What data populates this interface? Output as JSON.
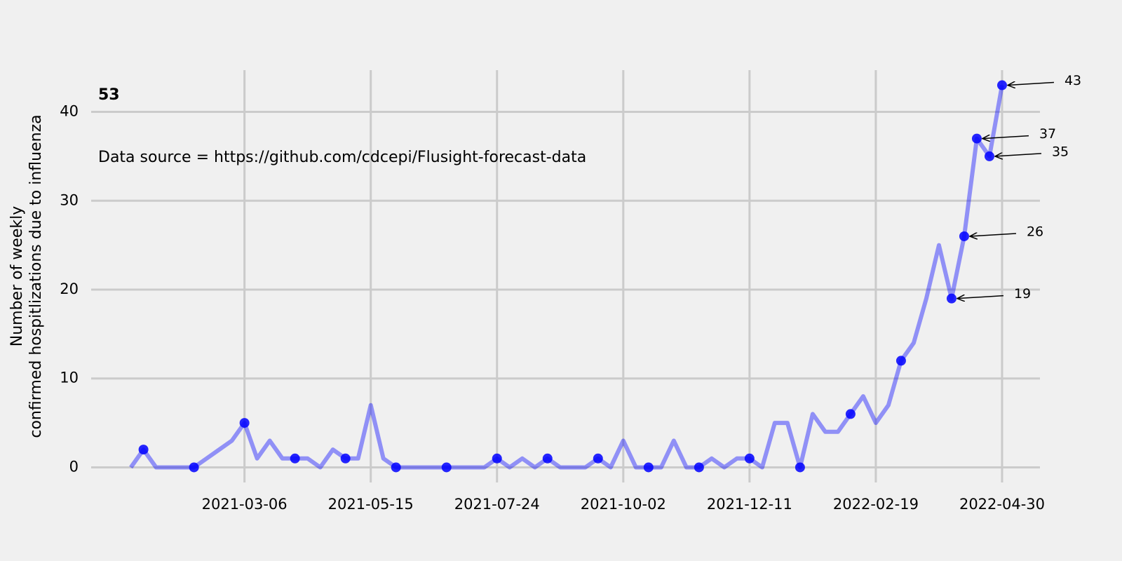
{
  "chart_data": {
    "type": "line",
    "annotations": [
      "53",
      "Data source = https://github.com/cdcepi/Flusight-forecast-data"
    ],
    "ylabel": [
      "Number of weekly",
      "confirmed hospitlizations due to influenza"
    ],
    "x": [
      "2021-01-02",
      "2021-01-09",
      "2021-01-16",
      "2021-01-23",
      "2021-01-30",
      "2021-02-06",
      "2021-02-13",
      "2021-02-20",
      "2021-02-27",
      "2021-03-06",
      "2021-03-13",
      "2021-03-20",
      "2021-03-27",
      "2021-04-03",
      "2021-04-10",
      "2021-04-17",
      "2021-04-24",
      "2021-05-01",
      "2021-05-08",
      "2021-05-15",
      "2021-05-22",
      "2021-05-29",
      "2021-06-05",
      "2021-06-12",
      "2021-06-19",
      "2021-06-26",
      "2021-07-03",
      "2021-07-10",
      "2021-07-17",
      "2021-07-24",
      "2021-07-31",
      "2021-08-07",
      "2021-08-14",
      "2021-08-21",
      "2021-08-28",
      "2021-09-04",
      "2021-09-11",
      "2021-09-18",
      "2021-09-25",
      "2021-10-02",
      "2021-10-09",
      "2021-10-16",
      "2021-10-23",
      "2021-10-30",
      "2021-11-06",
      "2021-11-13",
      "2021-11-20",
      "2021-11-27",
      "2021-12-04",
      "2021-12-11",
      "2021-12-18",
      "2021-12-25",
      "2022-01-01",
      "2022-01-08",
      "2022-01-15",
      "2022-01-22",
      "2022-01-29",
      "2022-02-05",
      "2022-02-12",
      "2022-02-19",
      "2022-02-26",
      "2022-03-05",
      "2022-03-12",
      "2022-03-19",
      "2022-03-26",
      "2022-04-02",
      "2022-04-09",
      "2022-04-16",
      "2022-04-23",
      "2022-04-30"
    ],
    "values": [
      0,
      2,
      0,
      0,
      0,
      0,
      1,
      2,
      3,
      5,
      1,
      3,
      1,
      1,
      1,
      0,
      2,
      1,
      1,
      7,
      1,
      0,
      0,
      0,
      0,
      0,
      0,
      0,
      0,
      1,
      0,
      1,
      0,
      1,
      0,
      0,
      0,
      1,
      0,
      3,
      0,
      0,
      0,
      3,
      0,
      0,
      1,
      0,
      1,
      1,
      0,
      5,
      5,
      0,
      6,
      4,
      4,
      6,
      8,
      5,
      7,
      12,
      14,
      19,
      25,
      19,
      26,
      37,
      35,
      43
    ],
    "color": "blue",
    "xlim": [
      "2020-12-11",
      "2022-05-21"
    ],
    "xticks": [
      "2021-03-06",
      "2021-05-15",
      "2021-07-24",
      "2021-10-02",
      "2021-12-11",
      "2022-02-19",
      "2022-04-30"
    ],
    "ylim": [
      -1.7,
      44.7
    ],
    "yticks": [
      0,
      10,
      20,
      30,
      40
    ],
    "grid": true
  }
}
